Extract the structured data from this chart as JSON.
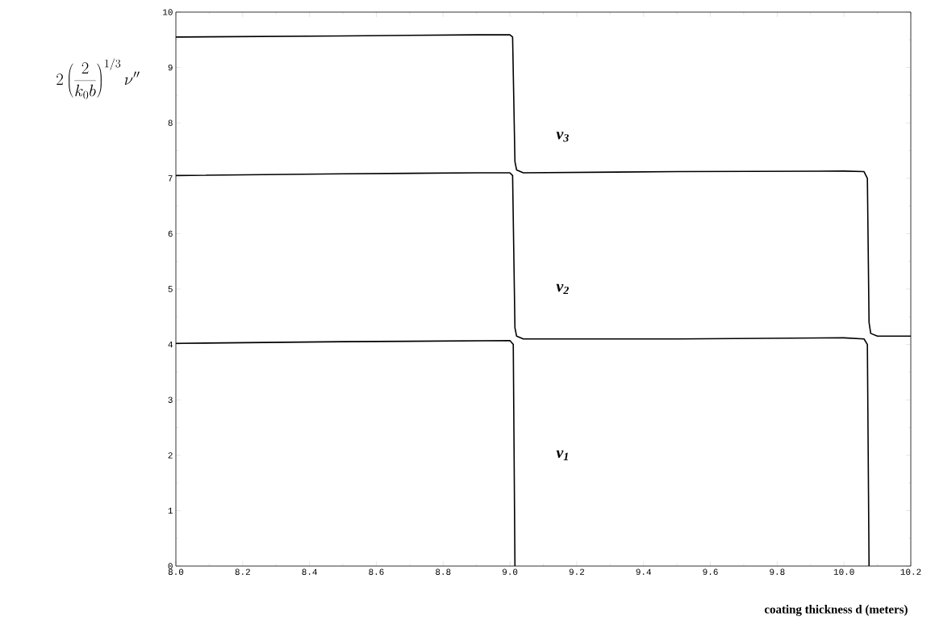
{
  "chart_data": {
    "type": "line",
    "xlabel": "coating thickness d (meters)",
    "ylabel": "2\\left(\\frac{2}{k_0 b}\\right)^{1/3}\\nu''",
    "xlim": [
      8.0,
      10.2
    ],
    "ylim": [
      0,
      10
    ],
    "xticks": [
      {
        "value": 8.0,
        "label": "8.0"
      },
      {
        "value": 8.2,
        "label": "8.2"
      },
      {
        "value": 8.4,
        "label": "8.4"
      },
      {
        "value": 8.6,
        "label": "8.6"
      },
      {
        "value": 8.8,
        "label": "8.8"
      },
      {
        "value": 9.0,
        "label": "9.0"
      },
      {
        "value": 9.2,
        "label": "9.2"
      },
      {
        "value": 9.4,
        "label": "9.4"
      },
      {
        "value": 9.6,
        "label": "9.6"
      },
      {
        "value": 9.8,
        "label": "9.8"
      },
      {
        "value": 10.0,
        "label": "10.0"
      },
      {
        "value": 10.2,
        "label": "10.2"
      }
    ],
    "yticks": [
      0,
      1,
      2,
      3,
      4,
      5,
      6,
      7,
      8,
      9,
      10
    ],
    "line_style": "solid",
    "marker": "none",
    "series": [
      {
        "name": "ν$_{1}$",
        "color": "#000000",
        "x": [
          8.0,
          8.5,
          9.0,
          9.01,
          9.015
        ],
        "values": [
          4.02,
          4.05,
          4.07,
          4.0,
          0
        ]
      },
      {
        "name": "ν$_{2}$",
        "color": "#000000",
        "x": [
          8.0,
          8.5,
          8.9,
          9.0,
          9.008,
          9.015,
          9.02,
          9.04,
          9.5,
          10.0,
          10.06,
          10.07,
          10.075
        ],
        "values": [
          7.05,
          7.08,
          7.1,
          7.1,
          7.05,
          4.3,
          4.15,
          4.1,
          4.1,
          4.12,
          4.1,
          4.0,
          0
        ]
      },
      {
        "name": "ν$_{3}$",
        "color": "#000000",
        "x": [
          8.0,
          8.5,
          8.9,
          9.0,
          9.008,
          9.015,
          9.02,
          9.04,
          9.5,
          10.0,
          10.06,
          10.07,
          10.075,
          10.08,
          10.1,
          10.2
        ],
        "values": [
          9.55,
          9.57,
          9.59,
          9.59,
          9.55,
          7.3,
          7.15,
          7.1,
          7.12,
          7.13,
          7.12,
          7.0,
          4.4,
          4.2,
          4.15,
          4.15
        ]
      }
    ]
  }
}
